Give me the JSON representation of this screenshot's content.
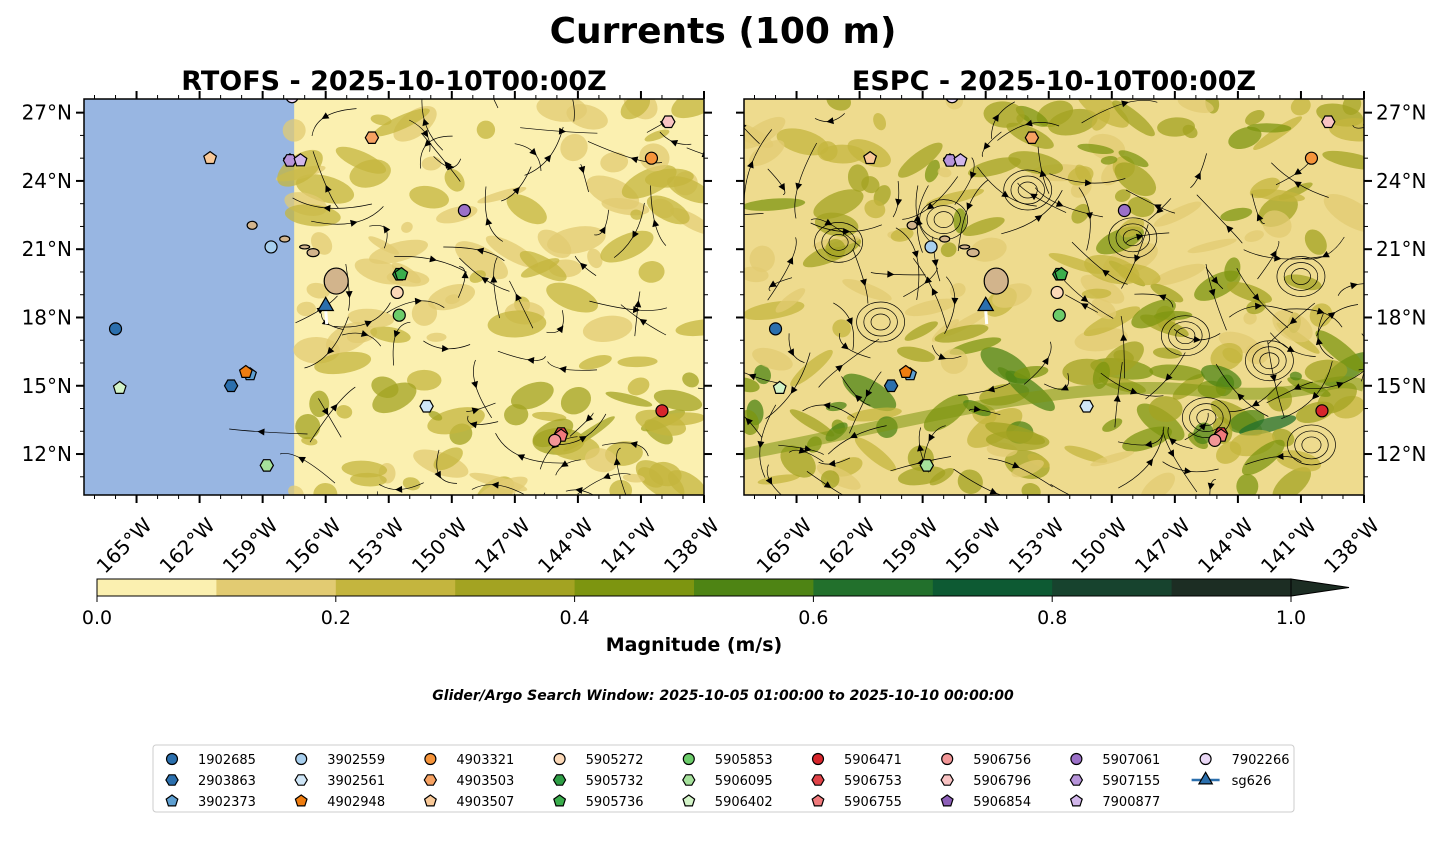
{
  "chart_data": {
    "type": "map",
    "title": "Currents (100 m)",
    "panels": [
      {
        "title": "RTOFS - 2025-10-10T00:00Z",
        "model": "RTOFS",
        "data_extent_lon": [
          -157.5,
          -138
        ]
      },
      {
        "title": "ESPC - 2025-10-10T00:00Z",
        "model": "ESPC",
        "data_extent_lon": [
          -167.5,
          -138
        ]
      }
    ],
    "lon_range": [
      -167.5,
      -138
    ],
    "lat_range": [
      10.2,
      27.6
    ],
    "lon_ticks": [
      "165°W",
      "162°W",
      "159°W",
      "156°W",
      "153°W",
      "150°W",
      "147°W",
      "144°W",
      "141°W",
      "138°W"
    ],
    "lon_tick_values": [
      -165,
      -162,
      -159,
      -156,
      -153,
      -150,
      -147,
      -144,
      -141,
      -138
    ],
    "lat_ticks": [
      "27°N",
      "24°N",
      "21°N",
      "18°N",
      "15°N",
      "12°N"
    ],
    "lat_tick_values": [
      27,
      24,
      21,
      18,
      15,
      12
    ],
    "colorbar": {
      "label": "Magnitude (m/s)",
      "levels": [
        0,
        0.1,
        0.2,
        0.3,
        0.4,
        0.5,
        0.6,
        0.7,
        0.8,
        0.9,
        1.0
      ],
      "tick_labels": [
        "0.0",
        "0.2",
        "0.4",
        "0.6",
        "0.8",
        "1.0"
      ],
      "tick_values": [
        0,
        0.2,
        0.4,
        0.6,
        0.8,
        1.0
      ],
      "colors": [
        "#fbf0b0",
        "#e2cb72",
        "#c4b53e",
        "#a3a322",
        "#7d9510",
        "#4e8414",
        "#22702c",
        "#0d5a33",
        "#17432e",
        "#1c2d23"
      ],
      "extend": "max"
    },
    "search_window": "Glider/Argo Search Window: 2025-10-05 01:00:00 to 2025-10-10 00:00:00",
    "floats": [
      {
        "id": "1902685",
        "marker": "circle",
        "color": "#2b6fad",
        "lon": -166.0,
        "lat": 17.5
      },
      {
        "id": "2903863",
        "marker": "hexagon",
        "color": "#2b6fad",
        "lon": -160.5,
        "lat": 15.0
      },
      {
        "id": "3902373",
        "marker": "pentagon",
        "color": "#5e9fd1",
        "lon": -159.6,
        "lat": 15.5
      },
      {
        "id": "3902559",
        "marker": "circle",
        "color": "#a8cfee",
        "lon": -158.6,
        "lat": 21.1
      },
      {
        "id": "3902561",
        "marker": "hexagon",
        "color": "#cfe6f7",
        "lon": -151.2,
        "lat": 14.1
      },
      {
        "id": "4902948",
        "marker": "pentagon",
        "color": "#ef7d10",
        "lon": -159.8,
        "lat": 15.6
      },
      {
        "id": "4903321",
        "marker": "circle",
        "color": "#f6943a",
        "lon": -140.5,
        "lat": 25.0
      },
      {
        "id": "4903503",
        "marker": "hexagon",
        "color": "#f7a262",
        "lon": -153.8,
        "lat": 25.9
      },
      {
        "id": "4903507",
        "marker": "pentagon",
        "color": "#f9c998",
        "lon": -161.5,
        "lat": 25.0
      },
      {
        "id": "5905272",
        "marker": "circle",
        "color": "#fcd9b8",
        "lon": -152.6,
        "lat": 19.1
      },
      {
        "id": "5905732",
        "marker": "hexagon",
        "color": "#2e9e45",
        "lon": -152.5,
        "lat": 19.9
      },
      {
        "id": "5905736",
        "marker": "pentagon",
        "color": "#3aad4c",
        "lon": -152.4,
        "lat": 19.9
      },
      {
        "id": "5905853",
        "marker": "circle",
        "color": "#6ccc6a",
        "lon": -152.5,
        "lat": 18.1
      },
      {
        "id": "5906095",
        "marker": "hexagon",
        "color": "#a5e19b",
        "lon": -158.8,
        "lat": 11.5
      },
      {
        "id": "5906402",
        "marker": "pentagon",
        "color": "#d3f4c8",
        "lon": -165.8,
        "lat": 14.9
      },
      {
        "id": "5906471",
        "marker": "circle",
        "color": "#d7262c",
        "lon": -140.0,
        "lat": 13.9
      },
      {
        "id": "5906753",
        "marker": "hexagon",
        "color": "#e04348",
        "lon": -144.8,
        "lat": 12.9
      },
      {
        "id": "5906755",
        "marker": "pentagon",
        "color": "#f07a7c",
        "lon": -144.8,
        "lat": 12.8
      },
      {
        "id": "5906756",
        "marker": "circle",
        "color": "#f29697",
        "lon": -145.1,
        "lat": 12.6
      },
      {
        "id": "5906796",
        "marker": "hexagon",
        "color": "#f9c3c3",
        "lon": -139.7,
        "lat": 26.6
      },
      {
        "id": "5906854",
        "marker": "pentagon",
        "color": "#8d5fb8",
        "lon": -157.7,
        "lat": 24.9
      },
      {
        "id": "5907061",
        "marker": "circle",
        "color": "#9b70c8",
        "lon": -149.4,
        "lat": 22.7
      },
      {
        "id": "5907155",
        "marker": "hexagon",
        "color": "#b794da",
        "lon": -157.7,
        "lat": 24.9
      },
      {
        "id": "7900877",
        "marker": "pentagon",
        "color": "#d1b6ea",
        "lon": -157.2,
        "lat": 24.9
      },
      {
        "id": "7902266",
        "marker": "circle",
        "color": "#ead8f6",
        "lon": -157.6,
        "lat": 27.7
      },
      {
        "id": "sg626",
        "marker": "triangle",
        "color": "#2b6fad",
        "lon": -156.0,
        "lat": 18.5,
        "track": true
      }
    ],
    "legend_columns": 10
  }
}
